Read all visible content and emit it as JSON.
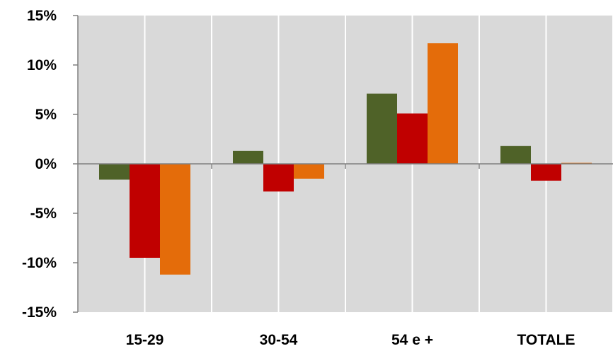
{
  "chart_data": {
    "type": "bar",
    "categories": [
      "15-29",
      "30-54",
      "54 e +",
      "TOTALE"
    ],
    "series": [
      {
        "color": "#4f6228",
        "values": [
          -1.6,
          1.3,
          7.1,
          1.8
        ]
      },
      {
        "color": "#c00000",
        "values": [
          -9.5,
          -2.8,
          5.1,
          -1.7
        ]
      },
      {
        "color": "#e46c0a",
        "values": [
          -11.2,
          -1.5,
          12.2,
          0.1
        ]
      }
    ],
    "ylim": [
      -15,
      15
    ],
    "yticks": [
      15,
      10,
      5,
      0,
      -5,
      -10,
      -15
    ],
    "ytick_labels": [
      "15%",
      "10%",
      "5%",
      "0%",
      "-5%",
      "-10%",
      "-15%"
    ],
    "grid": true,
    "plot_background": "#d9d9d9",
    "gridline_color": "#ffffff"
  }
}
